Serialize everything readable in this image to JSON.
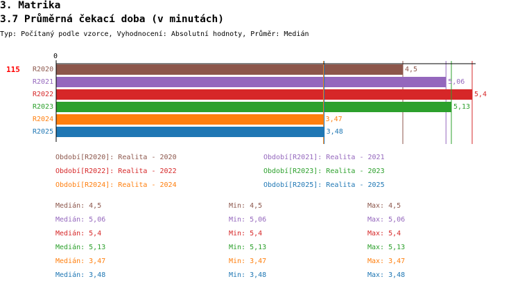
{
  "header": {
    "section": "3. Matrika",
    "title": "3.7 Průměrná čekací doba (v minutách)",
    "subtitle": "Typ: Počítaný podle vzorce, Vyhodnocení: Absolutní hodnoty, Průměr: Medián"
  },
  "chart_data": {
    "type": "bar",
    "orientation": "horizontal",
    "count_label": "115",
    "axis_zero_label": "0",
    "xlim": [
      0,
      5.4
    ],
    "categories": [
      "R2020",
      "R2021",
      "R2022",
      "R2023",
      "R2024",
      "R2025"
    ],
    "values": [
      4.5,
      5.06,
      5.4,
      5.13,
      3.47,
      3.48
    ],
    "value_labels": [
      "4,5",
      "5,06",
      "5,4",
      "5,13",
      "3,47",
      "3,48"
    ],
    "colors": [
      "#8c564b",
      "#9467bd",
      "#d62728",
      "#2ca02c",
      "#ff7f0e",
      "#1f77b4"
    ],
    "legend": [
      "Období[R2020]: Realita - 2020",
      "Období[R2021]: Realita - 2021",
      "Období[R2022]: Realita - 2022",
      "Období[R2023]: Realita - 2023",
      "Období[R2024]: Realita - 2024",
      "Období[R2025]: Realita - 2025"
    ],
    "stats": [
      {
        "median": "Medián: 4,5",
        "min": "Min: 4,5",
        "max": "Max: 4,5"
      },
      {
        "median": "Medián: 5,06",
        "min": "Min: 5,06",
        "max": "Max: 5,06"
      },
      {
        "median": "Medián: 5,4",
        "min": "Min: 5,4",
        "max": "Max: 5,4"
      },
      {
        "median": "Medián: 5,13",
        "min": "Min: 5,13",
        "max": "Max: 5,13"
      },
      {
        "median": "Medián: 3,47",
        "min": "Min: 3,47",
        "max": "Max: 3,47"
      },
      {
        "median": "Medián: 3,48",
        "min": "Min: 3,48",
        "max": "Max: 3,48"
      }
    ]
  }
}
